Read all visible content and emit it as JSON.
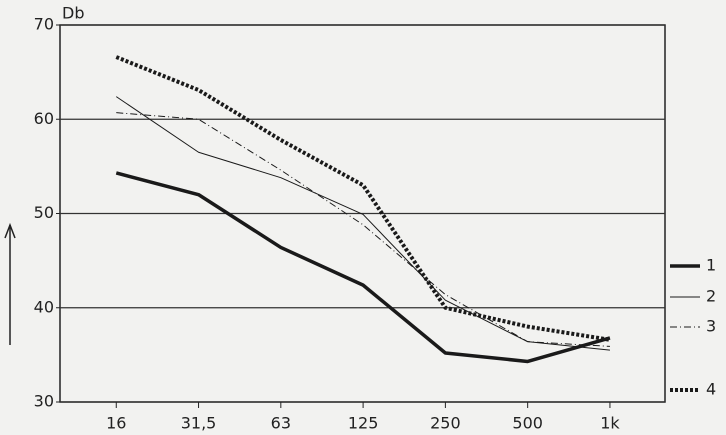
{
  "chart_data": {
    "type": "line",
    "y_label": "Db",
    "categories": [
      "16",
      "31,5",
      "63",
      "125",
      "250",
      "500",
      "1k"
    ],
    "series": [
      {
        "name": "1",
        "color": "#1a1a1a",
        "style": "thick",
        "values": [
          54.3,
          52,
          46.4,
          42.4,
          35.2,
          34.3,
          36.8
        ]
      },
      {
        "name": "2",
        "color": "#1a1a1a",
        "style": "thin",
        "values": [
          62.4,
          56.5,
          53.8,
          49.9,
          40.8,
          36.4,
          35.5
        ]
      },
      {
        "name": "3",
        "color": "#1a1a1a",
        "style": "dash-dot",
        "values": [
          60.7,
          60,
          54.6,
          48.8,
          41.4,
          36.4,
          35.9
        ]
      },
      {
        "name": "4",
        "color": "#1a1a1a",
        "style": "dotted",
        "values": [
          66.6,
          63.1,
          57.8,
          53,
          40,
          38,
          36.6
        ]
      }
    ],
    "ylim": [
      30,
      70
    ],
    "yticks": [
      30,
      40,
      50,
      60,
      70
    ],
    "grid": true,
    "legend": "right"
  }
}
